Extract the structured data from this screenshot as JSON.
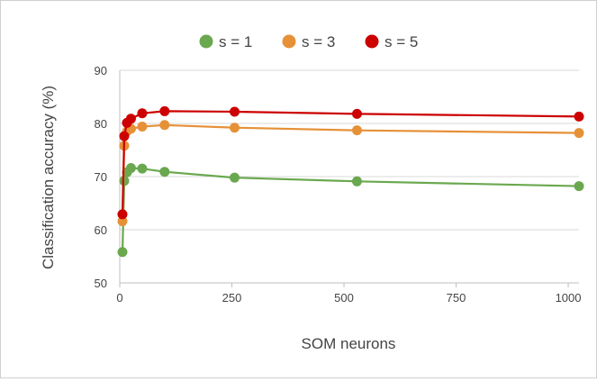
{
  "chart_data": {
    "type": "line",
    "x": [
      6,
      10,
      16,
      25,
      50,
      100,
      256,
      529,
      1024
    ],
    "series": [
      {
        "name": "s = 1",
        "color": "#6aa84f",
        "values": [
          55.8,
          69.2,
          70.8,
          71.6,
          71.5,
          70.9,
          69.8,
          69.1,
          68.2
        ]
      },
      {
        "name": "s = 3",
        "color": "#e69138",
        "values": [
          61.6,
          75.8,
          78.5,
          79.0,
          79.4,
          79.7,
          79.2,
          78.7,
          78.2
        ]
      },
      {
        "name": "s = 5",
        "color": "#cc0000",
        "values": [
          62.9,
          77.6,
          80.1,
          80.9,
          81.9,
          82.3,
          82.2,
          81.8,
          81.3
        ]
      }
    ],
    "xlabel": "SOM neurons",
    "ylabel": "Classification accuracy (%)",
    "xlim": [
      0,
      1024
    ],
    "ylim": [
      50,
      90
    ],
    "xticks": [
      0,
      250,
      500,
      750,
      1000
    ],
    "yticks": [
      50,
      60,
      70,
      80,
      90
    ],
    "grid": true,
    "legend_position": "top"
  }
}
